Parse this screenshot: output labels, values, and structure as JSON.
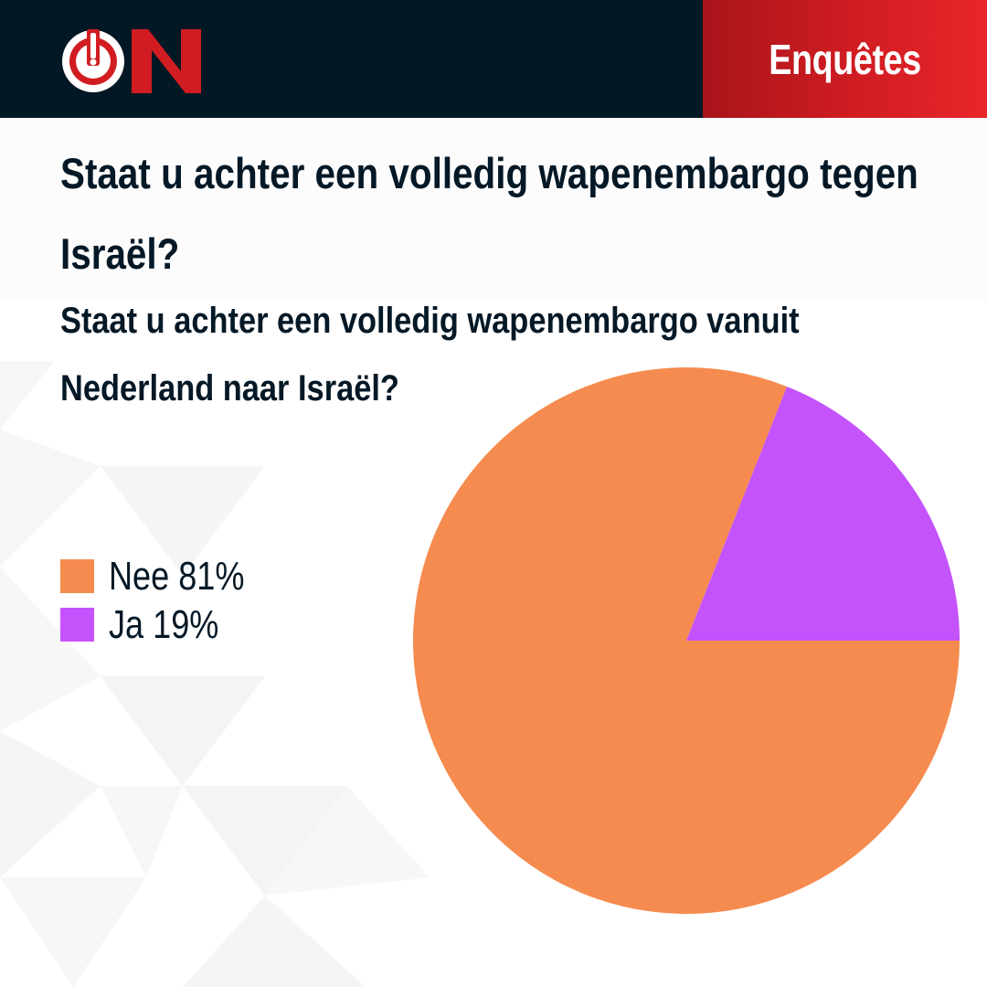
{
  "header": {
    "logo_text": "ON",
    "badge": "Enquêtes"
  },
  "colors": {
    "navy": "#021824",
    "brand_red": "#d11d22",
    "nee": "#f58b4e",
    "ja": "#c453fb"
  },
  "question": {
    "title": "Staat u achter een volledig wapenembargo tegen Israël?",
    "subtitle": "Staat u achter een volledig wapenembargo vanuit Nederland naar Israël?"
  },
  "chart_data": {
    "type": "pie",
    "slices": [
      {
        "label": "Nee",
        "value": 81,
        "display": "Nee 81%",
        "color": "#f58b4e"
      },
      {
        "label": "Ja",
        "value": 19,
        "display": "Ja 19%",
        "color": "#c453fb"
      }
    ],
    "legend_position": "left"
  }
}
